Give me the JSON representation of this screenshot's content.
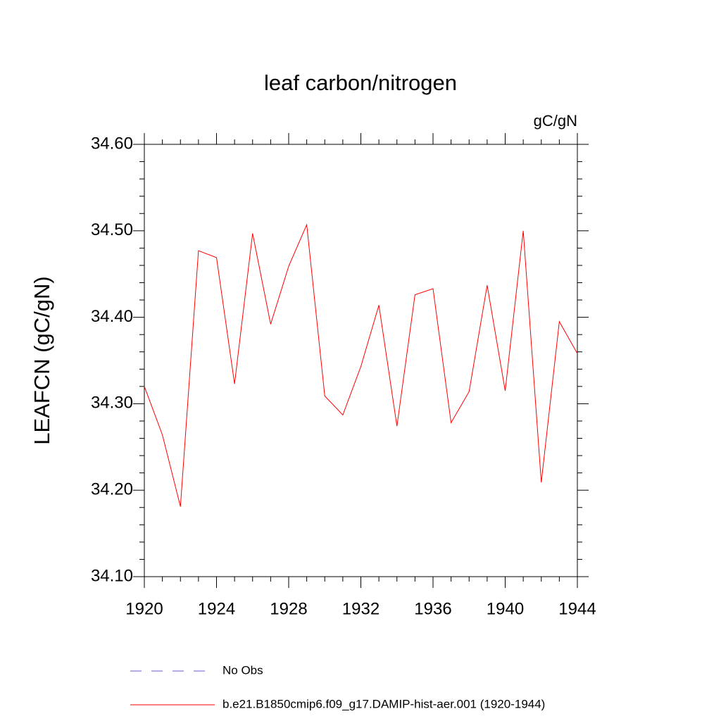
{
  "chart_data": {
    "type": "line",
    "title": "leaf carbon/nitrogen",
    "units": "gC/gN",
    "y_label": "LEAFCN  (gC/gN)",
    "x": [
      1920,
      1921,
      1922,
      1923,
      1924,
      1925,
      1926,
      1927,
      1928,
      1929,
      1930,
      1931,
      1932,
      1933,
      1934,
      1935,
      1936,
      1937,
      1938,
      1939,
      1940,
      1941,
      1942,
      1943,
      1944
    ],
    "series": [
      {
        "name": "b.e21.B1850cmip6.f09_g17.DAMIP-hist-aer.001 (1920-1944)",
        "color": "#ff0000",
        "values": [
          34.32,
          34.264,
          34.181,
          34.477,
          34.469,
          34.323,
          34.497,
          34.392,
          34.459,
          34.507,
          34.309,
          34.287,
          34.343,
          34.414,
          34.274,
          34.426,
          34.433,
          34.278,
          34.314,
          34.437,
          34.315,
          34.5,
          34.209,
          34.395,
          34.358
        ]
      }
    ],
    "reference_entry": {
      "name": "No Obs",
      "color": "#6a5acd",
      "dashed": true
    },
    "xlim": [
      1920,
      1944
    ],
    "xticks": [
      1920,
      1924,
      1928,
      1932,
      1936,
      1940,
      1944
    ],
    "xminorticks": [
      1921,
      1922,
      1923,
      1925,
      1926,
      1927,
      1929,
      1930,
      1931,
      1933,
      1934,
      1935,
      1937,
      1938,
      1939,
      1941,
      1942,
      1943
    ],
    "ylim": [
      34.1,
      34.6
    ],
    "yticks": [
      {
        "value": 34.1,
        "label": "34.10"
      },
      {
        "value": 34.2,
        "label": "34.20"
      },
      {
        "value": 34.3,
        "label": "34.30"
      },
      {
        "value": 34.4,
        "label": "34.40"
      },
      {
        "value": 34.5,
        "label": "34.50"
      },
      {
        "value": 34.6,
        "label": "34.60"
      }
    ],
    "yminorticks": [
      34.12,
      34.14,
      34.16,
      34.18,
      34.22,
      34.24,
      34.26,
      34.28,
      34.32,
      34.34,
      34.36,
      34.38,
      34.42,
      34.44,
      34.46,
      34.48,
      34.52,
      34.54,
      34.56,
      34.58
    ],
    "grid": false
  }
}
